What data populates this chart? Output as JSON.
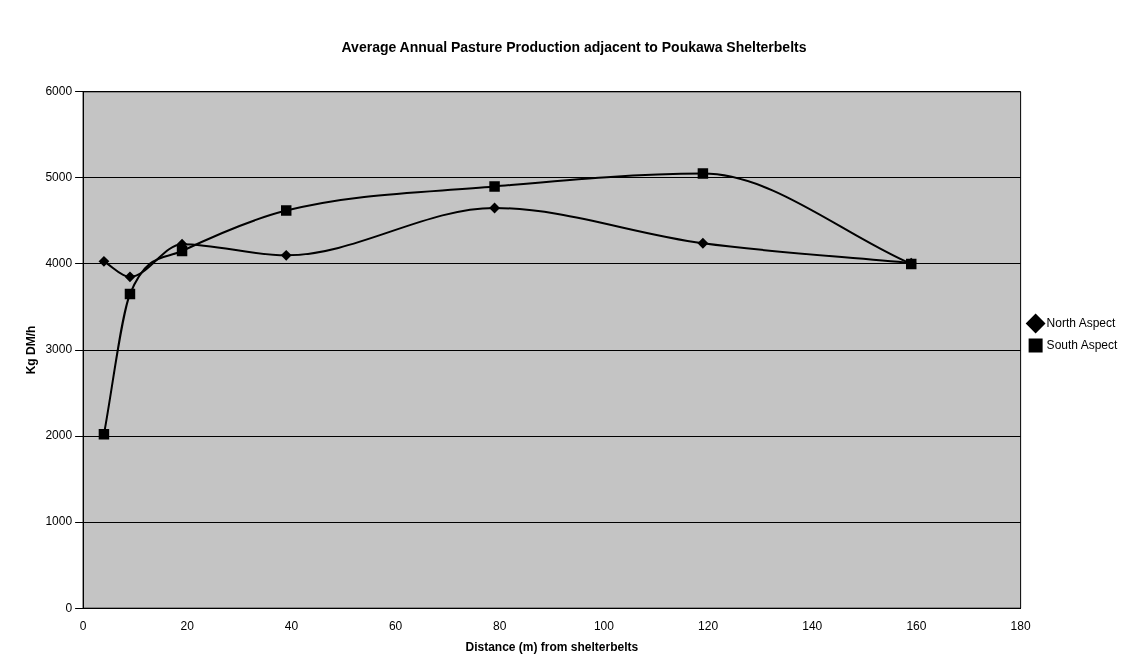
{
  "chart_data": {
    "type": "line",
    "title": "Average Annual Pasture Production adjacent to Poukawa Shelterbelts",
    "xlabel": "Distance (m) from shelterbelts",
    "ylabel": "Kg DM/h",
    "x": [
      4,
      9,
      19,
      39,
      79,
      119,
      159
    ],
    "series": [
      {
        "name": "North Aspect",
        "color": "#000000",
        "marker": "diamond",
        "values": [
          4030,
          3850,
          4230,
          4100,
          4650,
          4240,
          4010
        ]
      },
      {
        "name": "South Aspect",
        "color": "#000000",
        "marker": "square",
        "values": [
          2020,
          3650,
          4150,
          4620,
          4900,
          5050,
          4000
        ]
      }
    ],
    "xlim": [
      0,
      180
    ],
    "xticks": [
      0,
      20,
      40,
      60,
      80,
      100,
      120,
      140,
      160,
      180
    ],
    "ylim": [
      0,
      6000
    ],
    "yticks": [
      0,
      1000,
      2000,
      3000,
      4000,
      5000,
      6000
    ],
    "grid": "y",
    "legend": "right",
    "line_style": "solid"
  }
}
